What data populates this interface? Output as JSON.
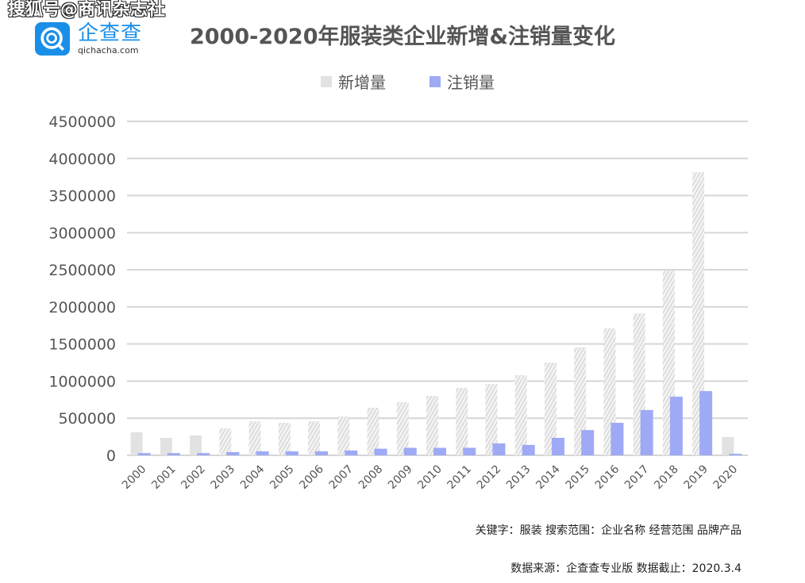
{
  "watermark": "搜狐号@商讯杂志社",
  "logo": {
    "name_cn": "企查查",
    "url_text": "qichacha.com"
  },
  "footer": {
    "keywords": "关键字：服装  搜索范围：企业名称 经营范围 品牌产品",
    "source": "数据来源：企查查专业版  数据截止：2020.3.4"
  },
  "chart_data": {
    "type": "bar",
    "title": "2000-2020年服装类企业新增&注销量变化",
    "legend_position": "top",
    "grid": true,
    "ylim": [
      0,
      4500000
    ],
    "yticks": [
      0,
      500000,
      1000000,
      1500000,
      2000000,
      2500000,
      3000000,
      3500000,
      4000000,
      4500000
    ],
    "categories": [
      "2000",
      "2001",
      "2002",
      "2003",
      "2004",
      "2005",
      "2006",
      "2007",
      "2008",
      "2009",
      "2010",
      "2011",
      "2012",
      "2013",
      "2014",
      "2015",
      "2016",
      "2017",
      "2018",
      "2019",
      "2020"
    ],
    "series": [
      {
        "name": "新增量",
        "color": "#e2e2e2",
        "pattern": "hatched",
        "values": [
          310000,
          235000,
          267000,
          363000,
          459000,
          438000,
          459000,
          523000,
          641000,
          716000,
          801000,
          908000,
          960000,
          1080000,
          1250000,
          1455000,
          1710000,
          1912000,
          2490000,
          3815000,
          245000
        ]
      },
      {
        "name": "注销量",
        "color": "#9eaaf5",
        "values": [
          30000,
          30000,
          30000,
          43000,
          53000,
          53000,
          53000,
          64000,
          89000,
          101000,
          101000,
          101000,
          160000,
          140000,
          235000,
          340000,
          438000,
          610000,
          790000,
          865000,
          20000
        ]
      }
    ],
    "solid_categories": [
      "2000",
      "2001",
      "2002",
      "2020"
    ]
  }
}
